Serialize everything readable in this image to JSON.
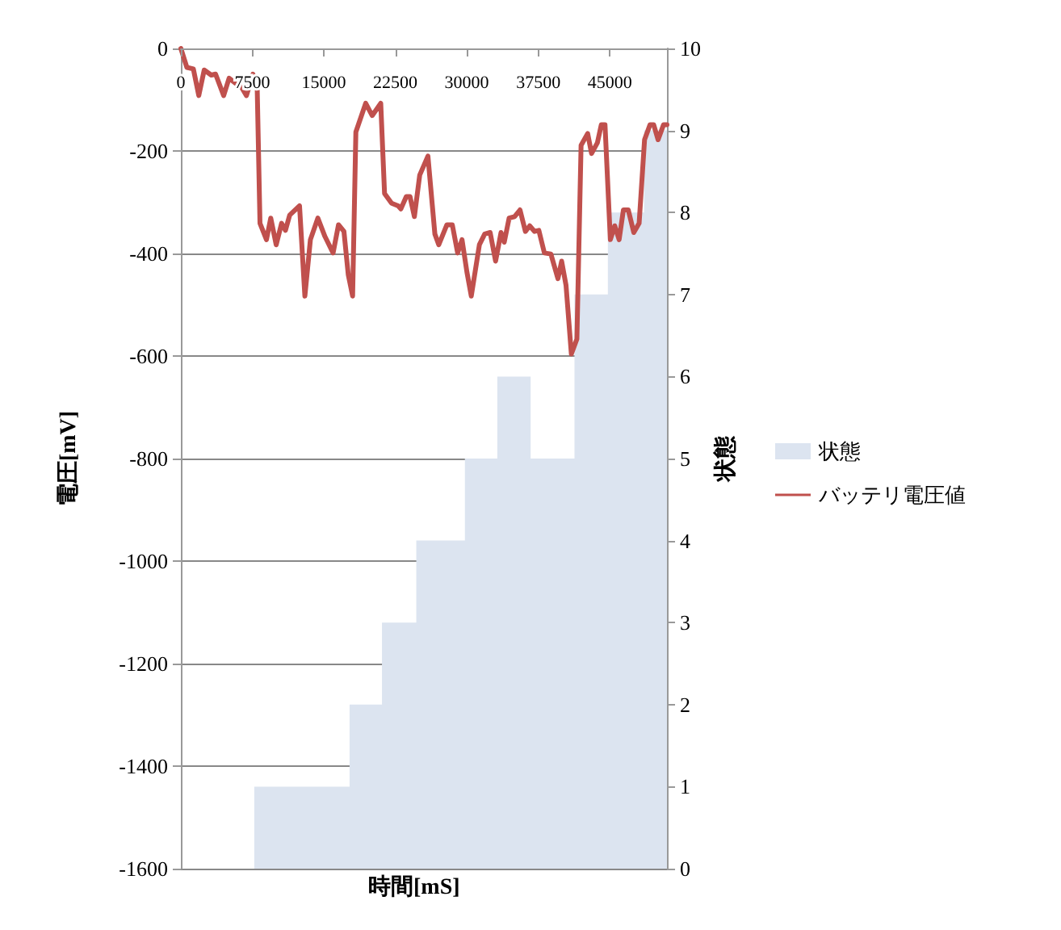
{
  "chart_data": {
    "type": "line",
    "xlabel": "時間[mS]",
    "ylabel": "電圧[mV]",
    "y2label": "状態",
    "xlim": [
      0,
      51000
    ],
    "xticks": [
      0,
      7500,
      15000,
      22500,
      30000,
      37500,
      45000
    ],
    "ylim": [
      -1600,
      0
    ],
    "yticks": [
      -1600,
      -1400,
      -1200,
      -1000,
      -800,
      -600,
      -400,
      -200,
      0
    ],
    "y2lim": [
      0,
      10
    ],
    "y2ticks": [
      0,
      1,
      2,
      3,
      4,
      5,
      6,
      7,
      8,
      9,
      10
    ],
    "grid": "y",
    "legend": "right",
    "marker": "none",
    "line_style": "solid",
    "series": [
      {
        "name": "状態",
        "type": "area",
        "axis": "y2",
        "color": "#dce4f0",
        "x": [
          0,
          7700,
          7700,
          17700,
          17700,
          21100,
          21100,
          24700,
          24700,
          29800,
          29800,
          33200,
          33200,
          36700,
          36700,
          41300,
          41300,
          44800,
          44800,
          48600,
          48600,
          51000
        ],
        "values": [
          0,
          0,
          1,
          1,
          2,
          2,
          3,
          3,
          4,
          4,
          5,
          5,
          6,
          6,
          5,
          5,
          7,
          7,
          8,
          8,
          9,
          9
        ]
      },
      {
        "name": "バッテリ電圧値",
        "type": "line",
        "color": "#c0504d",
        "x": [
          0,
          630,
          1310,
          1880,
          2450,
          3190,
          3640,
          4490,
          5060,
          5740,
          6310,
          6880,
          7560,
          8010,
          8300,
          8980,
          9430,
          10000,
          10570,
          10970,
          11420,
          12450,
          13010,
          13590,
          14370,
          15120,
          15970,
          16540,
          17110,
          17560,
          18020,
          18360,
          19390,
          20070,
          20970,
          21370,
          22110,
          22800,
          23080,
          23650,
          24040,
          24500,
          25060,
          25920,
          26650,
          27060,
          27910,
          28480,
          29040,
          29500,
          30010,
          30470,
          31320,
          31880,
          32450,
          33020,
          33590,
          33930,
          34440,
          35010,
          35580,
          36150,
          36600,
          37110,
          37560,
          38140,
          38820,
          39560,
          39950,
          40410,
          40970,
          41550,
          41990,
          42680,
          43090,
          43700,
          44110,
          44500,
          45060,
          45520,
          45980,
          46430,
          46940,
          47520,
          48080,
          48650,
          49220,
          49610,
          50070,
          50640,
          51000
        ],
        "values": [
          0,
          -37,
          -40,
          -92,
          -42,
          -52,
          -50,
          -92,
          -58,
          -68,
          -74,
          -92,
          -50,
          -79,
          -341,
          -373,
          -331,
          -383,
          -341,
          -355,
          -325,
          -307,
          -483,
          -373,
          -331,
          -367,
          -399,
          -344,
          -357,
          -441,
          -483,
          -163,
          -107,
          -131,
          -107,
          -283,
          -302,
          -307,
          -313,
          -289,
          -289,
          -328,
          -247,
          -210,
          -362,
          -383,
          -344,
          -344,
          -399,
          -373,
          -436,
          -483,
          -383,
          -362,
          -359,
          -415,
          -359,
          -378,
          -331,
          -328,
          -315,
          -357,
          -346,
          -357,
          -355,
          -399,
          -401,
          -449,
          -415,
          -462,
          -596,
          -567,
          -189,
          -166,
          -205,
          -184,
          -149,
          -149,
          -373,
          -346,
          -373,
          -315,
          -315,
          -359,
          -341,
          -178,
          -149,
          -149,
          -178,
          -149,
          -149
        ]
      }
    ]
  }
}
